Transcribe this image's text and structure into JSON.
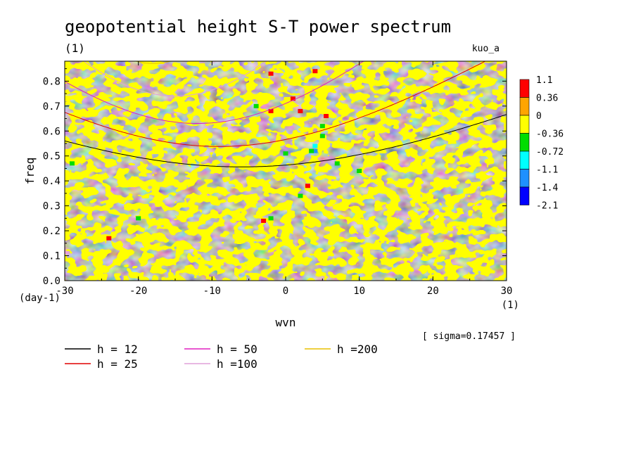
{
  "chart_data": {
    "type": "heatmap",
    "title": "geopotential height S-T power spectrum",
    "subtitle": "(1)",
    "top_right_label": "kuo_a",
    "xlabel": "wvn",
    "ylabel": "freq",
    "x_unit": "(1)",
    "y_unit": "(day-1)",
    "xlim": [
      -30,
      30
    ],
    "ylim": [
      0,
      0.88
    ],
    "x_ticks": [
      -30,
      -20,
      -10,
      0,
      10,
      20,
      30
    ],
    "y_ticks": [
      0.0,
      0.1,
      0.2,
      0.3,
      0.4,
      0.5,
      0.6,
      0.7,
      0.8
    ],
    "x_tick_labels": [
      "-30",
      "-20",
      "-10",
      "0",
      "10",
      "20",
      "30"
    ],
    "y_tick_labels": [
      "0.0",
      "0.1",
      "0.2",
      "0.3",
      "0.4",
      "0.5",
      "0.6",
      "0.7",
      "0.8"
    ],
    "colorbar": {
      "labels": [
        "1.1",
        "0.36",
        "0",
        "-0.36",
        "-0.72",
        "-1.1",
        "-1.4",
        "-2.1"
      ],
      "colors": [
        "#ff0000",
        "#ffa500",
        "#ffff00",
        "#00dd00",
        "#00ffff",
        "#1e90ff",
        "#0000ff"
      ]
    },
    "background_levels": {
      "positive_color": "#ffa500",
      "near_zero_color": "#ffff00"
    },
    "anomalies": [
      {
        "x": 4,
        "y": 0.52,
        "color": "#1e90ff"
      },
      {
        "x": 4,
        "y": 0.54,
        "color": "#00ffff"
      },
      {
        "x": 3.5,
        "y": 0.52,
        "color": "#00dd00"
      },
      {
        "x": 5,
        "y": 0.58,
        "color": "#00dd00"
      },
      {
        "x": 5,
        "y": 0.62,
        "color": "#00dd00"
      },
      {
        "x": 1,
        "y": 0.73,
        "color": "#ff0000"
      },
      {
        "x": 2,
        "y": 0.68,
        "color": "#ff0000"
      },
      {
        "x": 5.5,
        "y": 0.66,
        "color": "#ff0000"
      },
      {
        "x": 3,
        "y": 0.38,
        "color": "#ff0000"
      },
      {
        "x": -3,
        "y": 0.24,
        "color": "#ff0000"
      },
      {
        "x": -2,
        "y": 0.68,
        "color": "#ff0000"
      },
      {
        "x": -2,
        "y": 0.83,
        "color": "#ff0000"
      },
      {
        "x": 4,
        "y": 0.84,
        "color": "#ff0000"
      },
      {
        "x": -24,
        "y": 0.17,
        "color": "#ff0000"
      },
      {
        "x": 2,
        "y": 0.34,
        "color": "#00dd00"
      },
      {
        "x": 0,
        "y": 0.51,
        "color": "#00dd00"
      },
      {
        "x": -29,
        "y": 0.47,
        "color": "#00dd00"
      },
      {
        "x": 10,
        "y": 0.44,
        "color": "#00dd00"
      },
      {
        "x": 7,
        "y": 0.47,
        "color": "#00dd00"
      },
      {
        "x": -2,
        "y": 0.25,
        "color": "#00dd00"
      },
      {
        "x": -20,
        "y": 0.25,
        "color": "#00dd00"
      },
      {
        "x": -4,
        "y": 0.7,
        "color": "#00dd00"
      }
    ],
    "series": [
      {
        "name": "h = 12",
        "h": 12,
        "color": "#000000"
      },
      {
        "name": "h = 25",
        "h": 25,
        "color": "#e00000"
      },
      {
        "name": "h = 50",
        "h": 50,
        "color": "#e020c0"
      },
      {
        "name": "h =100",
        "h": 100,
        "color": "#e0a0d8"
      },
      {
        "name": "h =200",
        "h": 200,
        "color": "#e8c000"
      }
    ],
    "sigma_text": "[ sigma=0.17457 ]"
  }
}
